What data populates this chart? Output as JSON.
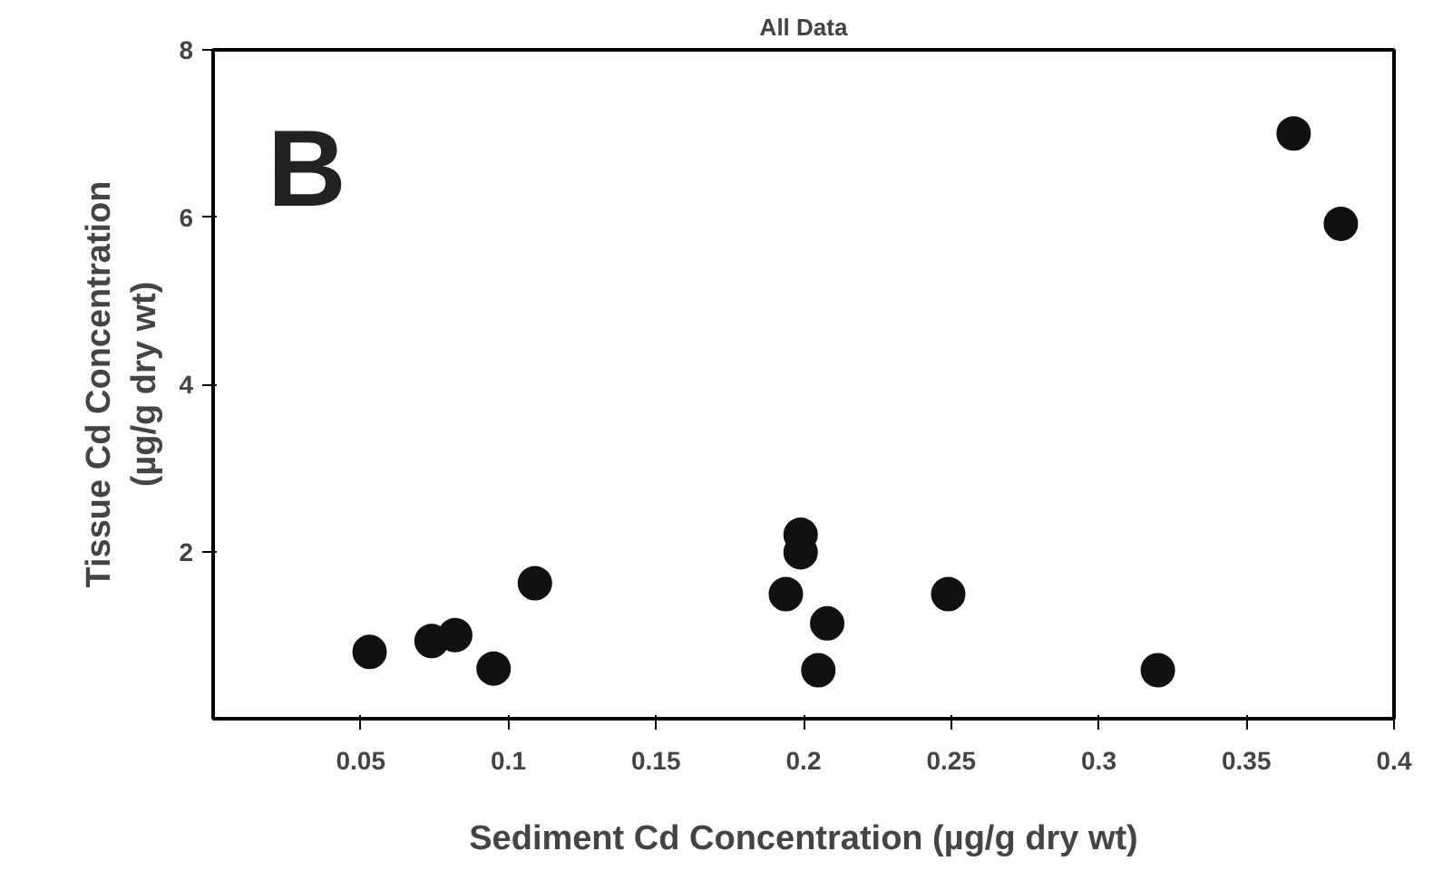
{
  "chart_data": {
    "type": "scatter",
    "title": "All Data",
    "xlabel": "Sediment Cd Concentration (µg/g dry wt)",
    "ylabel": "Tissue Cd Concentration\n(µg/g dry wt)",
    "annotations": [
      "B"
    ],
    "x": [
      0.053,
      0.074,
      0.082,
      0.095,
      0.109,
      0.194,
      0.199,
      0.199,
      0.208,
      0.205,
      0.249,
      0.32,
      0.366,
      0.382
    ],
    "series": [
      {
        "color": "#111111",
        "values": [
          0.8,
          0.93,
          1.0,
          0.6,
          1.62,
          1.49,
          2.2,
          1.99,
          1.14,
          0.58,
          1.49,
          0.58,
          7.0,
          5.92
        ]
      }
    ],
    "xlim": [
      0,
      0.4
    ],
    "xticks": [
      0.05,
      0.1,
      0.15,
      0.2,
      0.25,
      0.3,
      0.35,
      0.4
    ],
    "ylim": [
      0,
      8
    ],
    "yticks": [
      2,
      4,
      6,
      8
    ],
    "marker": "circle",
    "grid": false
  }
}
